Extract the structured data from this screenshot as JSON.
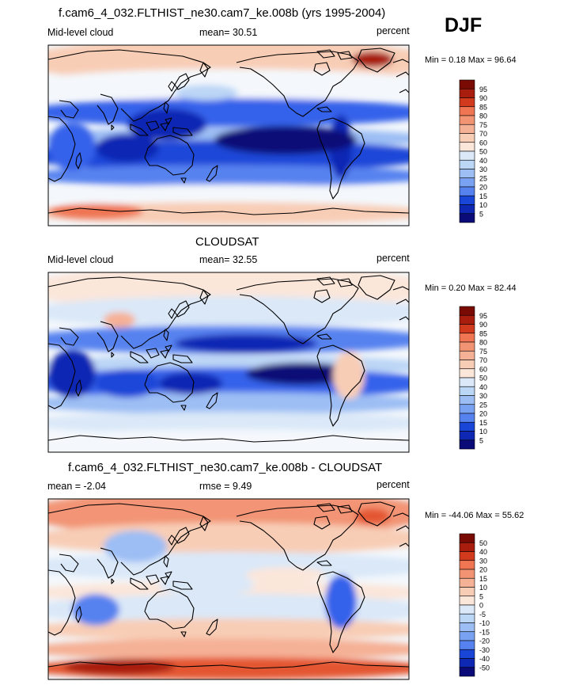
{
  "season_label": "DJF",
  "colors": {
    "abs": [
      "#0a0a78",
      "#0e28b4",
      "#1a46d8",
      "#3462ea",
      "#5682ef",
      "#7aa2f2",
      "#9cbef4",
      "#bcd6f6",
      "#dae8f8",
      "#f4f8fc",
      "#fbe6da",
      "#f8cdb6",
      "#f5b196",
      "#f29474",
      "#ef7553",
      "#e45733",
      "#d13a1c",
      "#a81d0e",
      "#7a0a04"
    ],
    "diff": [
      "#0a0a78",
      "#0e28b4",
      "#1a46d8",
      "#3462ea",
      "#5682ef",
      "#7aa2f2",
      "#9cbef4",
      "#bcd6f6",
      "#dae8f8",
      "#f4f8fc",
      "#fbe6da",
      "#f8cdb6",
      "#f5b196",
      "#f29474",
      "#ef7553",
      "#e45733",
      "#d13a1c",
      "#a81d0e",
      "#7a0a04"
    ]
  },
  "panels": [
    {
      "title": "f.cam6_4_032.FLTHIST_ne30.cam7_ke.008b (yrs 1995-2004)",
      "left_label": "Mid-level cloud",
      "mid_label": "mean=  30.51",
      "right_label": "percent",
      "minmax": "Min =   0.18 Max =  96.64",
      "levels": [
        "5",
        "10",
        "15",
        "20",
        "25",
        "30",
        "40",
        "50",
        "60",
        "70",
        "75",
        "80",
        "85",
        "90",
        "95"
      ]
    },
    {
      "title": "CLOUDSAT",
      "left_label": "Mid-level cloud",
      "mid_label": "mean=  32.55",
      "right_label": "percent",
      "minmax": "Min =   0.20 Max =  82.44",
      "levels": [
        "5",
        "10",
        "15",
        "20",
        "25",
        "30",
        "40",
        "50",
        "60",
        "70",
        "75",
        "80",
        "85",
        "90",
        "95"
      ]
    },
    {
      "title": "f.cam6_4_032.FLTHIST_ne30.cam7_ke.008b - CLOUDSAT",
      "left_label": "mean =  -2.04",
      "mid_label": "rmse =    9.49",
      "right_label": "percent",
      "minmax": "Min = -44.06 Max =  55.62",
      "levels": [
        "-50",
        "-40",
        "-30",
        "-20",
        "-15",
        "-10",
        "-5",
        "0",
        "5",
        "10",
        "15",
        "20",
        "30",
        "40",
        "50"
      ]
    }
  ]
}
